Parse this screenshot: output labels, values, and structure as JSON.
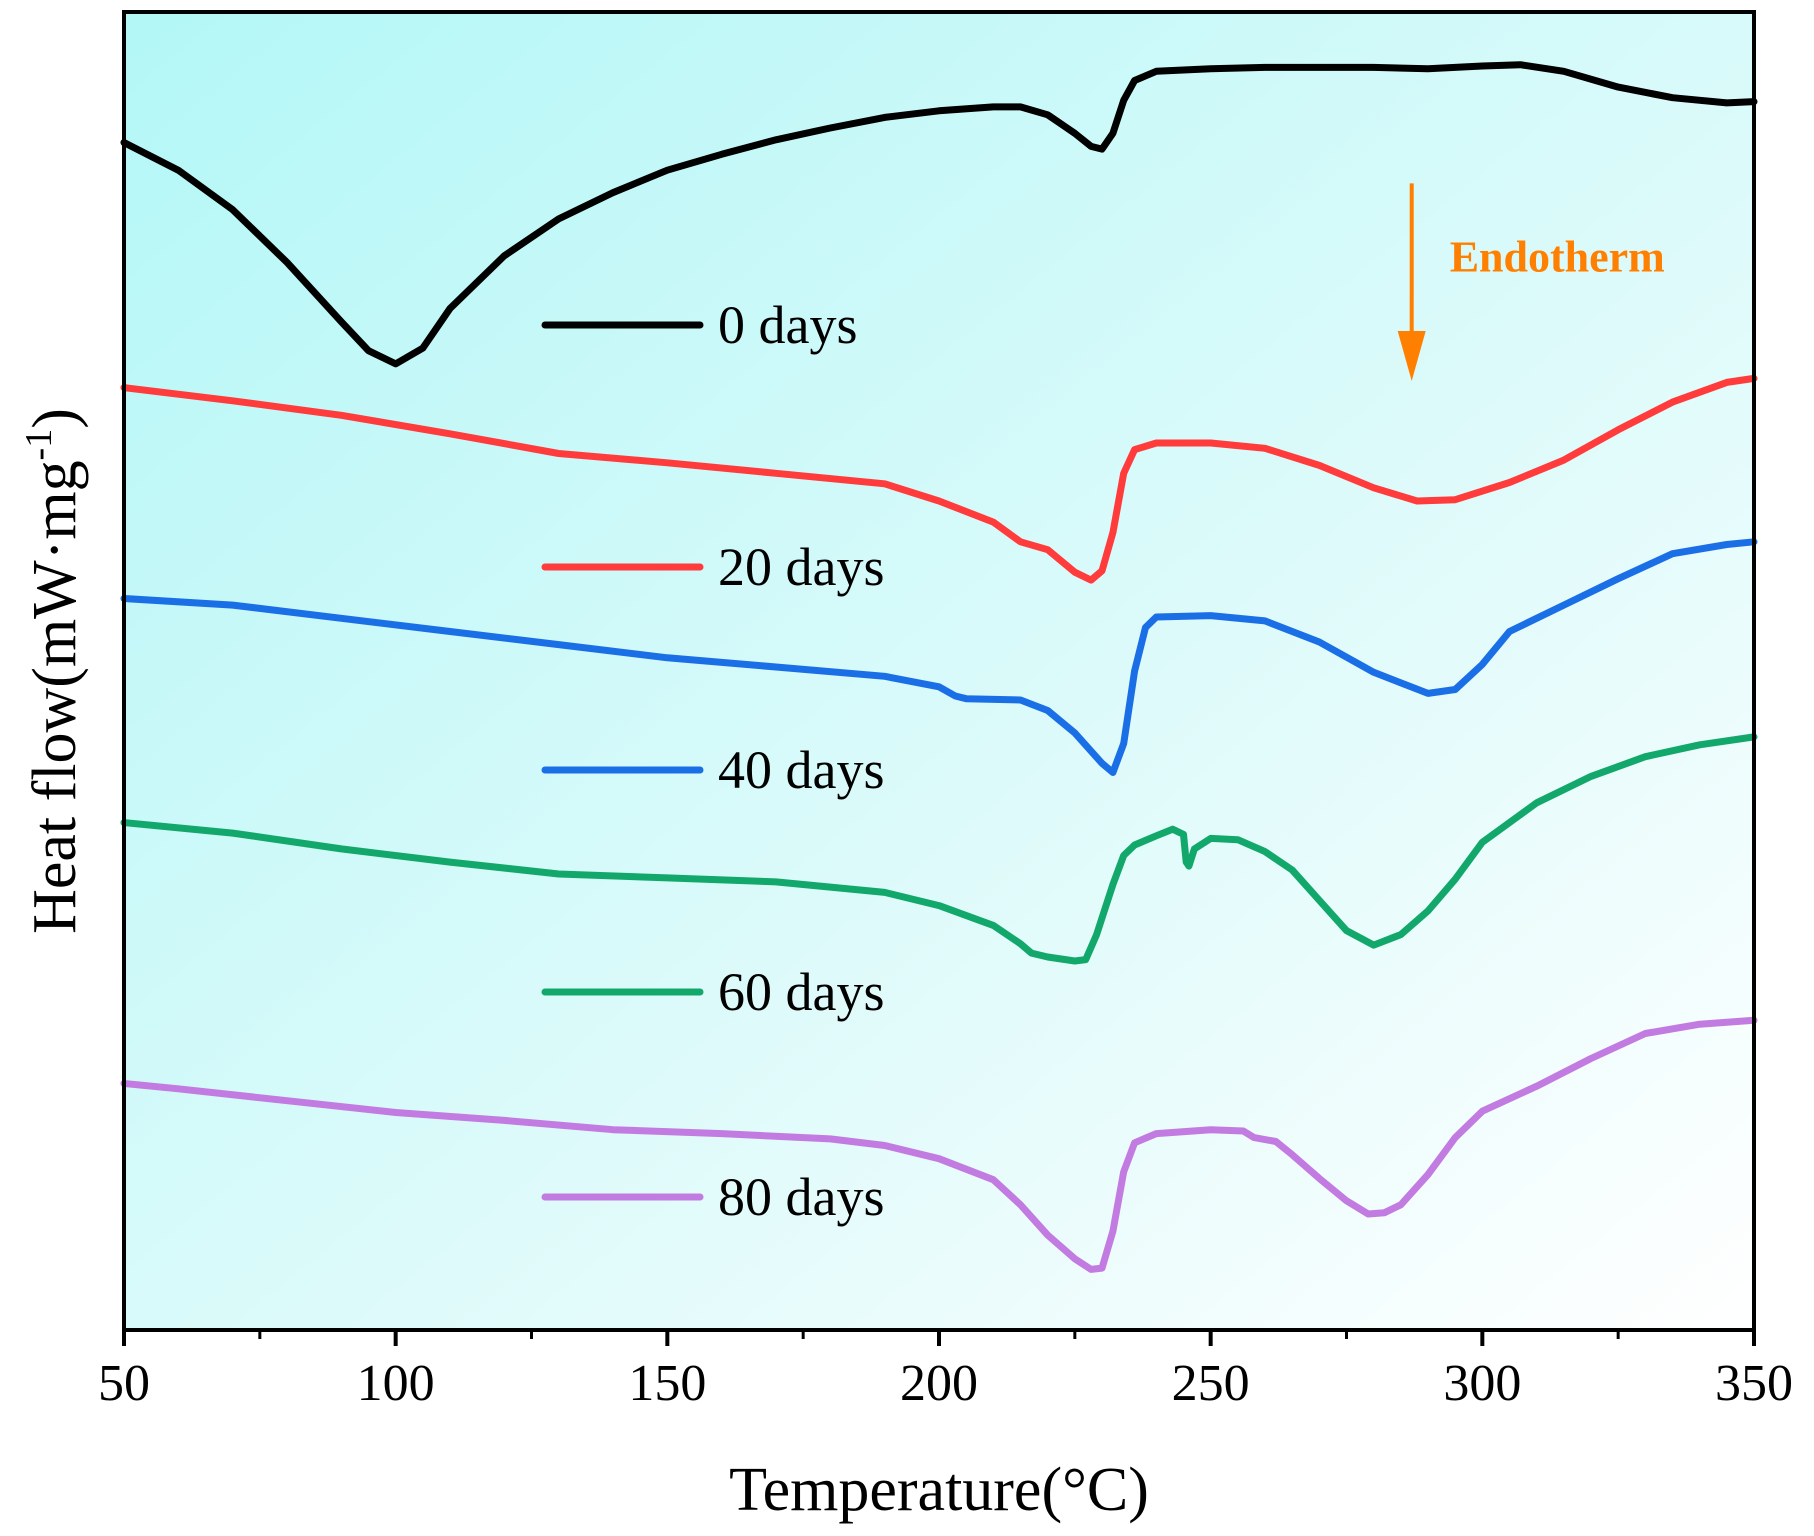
{
  "chart_data": {
    "type": "line",
    "title": "",
    "xlabel": "Temperature(°C)",
    "ylabel": "Heat flow(mW·mg",
    "ylabel_sup": "-1",
    "ylabel_close": ")",
    "xlim": [
      50,
      350
    ],
    "ylim": [
      0,
      100
    ],
    "x_ticks": [
      50,
      100,
      150,
      200,
      250,
      300,
      350
    ],
    "x_tick_labels": [
      "50",
      "100",
      "150",
      "200",
      "250",
      "300",
      "350"
    ],
    "grid": false,
    "legend_position": "center",
    "annotation": {
      "text": "Endotherm",
      "x": 287,
      "y_top": 87,
      "y_bottom": 72,
      "color": "#ff8000"
    },
    "series": [
      {
        "name": "0 days",
        "color": "#000000",
        "points": [
          [
            50,
            90.1
          ],
          [
            60,
            88.0
          ],
          [
            70,
            85.0
          ],
          [
            80,
            81.0
          ],
          [
            90,
            76.5
          ],
          [
            95,
            74.3
          ],
          [
            100,
            73.3
          ],
          [
            105,
            74.5
          ],
          [
            110,
            77.5
          ],
          [
            120,
            81.5
          ],
          [
            130,
            84.3
          ],
          [
            140,
            86.3
          ],
          [
            150,
            88.0
          ],
          [
            160,
            89.2
          ],
          [
            170,
            90.3
          ],
          [
            180,
            91.2
          ],
          [
            190,
            92.0
          ],
          [
            200,
            92.5
          ],
          [
            210,
            92.8
          ],
          [
            215,
            92.8
          ],
          [
            220,
            92.2
          ],
          [
            225,
            90.8
          ],
          [
            228,
            89.8
          ],
          [
            230,
            89.6
          ],
          [
            232,
            90.8
          ],
          [
            234,
            93.3
          ],
          [
            236,
            94.8
          ],
          [
            240,
            95.5
          ],
          [
            250,
            95.7
          ],
          [
            260,
            95.8
          ],
          [
            280,
            95.8
          ],
          [
            290,
            95.7
          ],
          [
            300,
            95.9
          ],
          [
            307,
            96.0
          ],
          [
            315,
            95.5
          ],
          [
            325,
            94.3
          ],
          [
            335,
            93.5
          ],
          [
            345,
            93.1
          ],
          [
            350,
            93.2
          ]
        ]
      },
      {
        "name": "20 days",
        "color": "#ff3b3b",
        "points": [
          [
            50,
            71.5
          ],
          [
            70,
            70.5
          ],
          [
            90,
            69.4
          ],
          [
            110,
            68.0
          ],
          [
            130,
            66.5
          ],
          [
            150,
            65.8
          ],
          [
            170,
            65.0
          ],
          [
            190,
            64.2
          ],
          [
            200,
            62.9
          ],
          [
            210,
            61.3
          ],
          [
            215,
            59.8
          ],
          [
            220,
            59.2
          ],
          [
            225,
            57.5
          ],
          [
            228,
            56.9
          ],
          [
            230,
            57.6
          ],
          [
            232,
            60.5
          ],
          [
            234,
            65.0
          ],
          [
            236,
            66.8
          ],
          [
            240,
            67.3
          ],
          [
            250,
            67.3
          ],
          [
            260,
            66.9
          ],
          [
            270,
            65.6
          ],
          [
            280,
            63.9
          ],
          [
            288,
            62.9
          ],
          [
            295,
            63.0
          ],
          [
            305,
            64.3
          ],
          [
            315,
            66.0
          ],
          [
            325,
            68.3
          ],
          [
            335,
            70.4
          ],
          [
            345,
            71.9
          ],
          [
            350,
            72.2
          ]
        ]
      },
      {
        "name": "40 days",
        "color": "#1a6fe6",
        "points": [
          [
            50,
            55.5
          ],
          [
            70,
            55.0
          ],
          [
            90,
            54.0
          ],
          [
            110,
            53.0
          ],
          [
            130,
            52.0
          ],
          [
            150,
            51.0
          ],
          [
            170,
            50.3
          ],
          [
            190,
            49.6
          ],
          [
            200,
            48.8
          ],
          [
            203,
            48.1
          ],
          [
            205,
            47.9
          ],
          [
            215,
            47.8
          ],
          [
            220,
            47.0
          ],
          [
            225,
            45.3
          ],
          [
            230,
            43.0
          ],
          [
            232,
            42.3
          ],
          [
            234,
            44.5
          ],
          [
            236,
            50.0
          ],
          [
            238,
            53.3
          ],
          [
            240,
            54.1
          ],
          [
            250,
            54.2
          ],
          [
            260,
            53.8
          ],
          [
            270,
            52.2
          ],
          [
            280,
            49.9
          ],
          [
            290,
            48.3
          ],
          [
            295,
            48.6
          ],
          [
            300,
            50.5
          ],
          [
            305,
            53.0
          ],
          [
            315,
            55.0
          ],
          [
            325,
            57.0
          ],
          [
            335,
            58.9
          ],
          [
            345,
            59.6
          ],
          [
            350,
            59.8
          ]
        ]
      },
      {
        "name": "60 days",
        "color": "#13a86b",
        "points": [
          [
            50,
            38.5
          ],
          [
            70,
            37.7
          ],
          [
            90,
            36.5
          ],
          [
            110,
            35.5
          ],
          [
            130,
            34.6
          ],
          [
            150,
            34.3
          ],
          [
            170,
            34.0
          ],
          [
            190,
            33.2
          ],
          [
            200,
            32.2
          ],
          [
            210,
            30.7
          ],
          [
            215,
            29.3
          ],
          [
            217,
            28.6
          ],
          [
            220,
            28.3
          ],
          [
            225,
            28.0
          ],
          [
            227,
            28.1
          ],
          [
            229,
            30.0
          ],
          [
            232,
            33.8
          ],
          [
            234,
            36.0
          ],
          [
            236,
            36.8
          ],
          [
            240,
            37.5
          ],
          [
            243,
            38.0
          ],
          [
            245,
            37.6
          ],
          [
            245.5,
            35.5
          ],
          [
            246,
            35.2
          ],
          [
            247,
            36.5
          ],
          [
            250,
            37.3
          ],
          [
            255,
            37.2
          ],
          [
            260,
            36.3
          ],
          [
            265,
            34.9
          ],
          [
            270,
            32.6
          ],
          [
            275,
            30.3
          ],
          [
            280,
            29.2
          ],
          [
            285,
            30.0
          ],
          [
            290,
            31.8
          ],
          [
            295,
            34.2
          ],
          [
            300,
            37.0
          ],
          [
            310,
            40.0
          ],
          [
            320,
            42.0
          ],
          [
            330,
            43.5
          ],
          [
            340,
            44.4
          ],
          [
            350,
            45.0
          ]
        ]
      },
      {
        "name": "80 days",
        "color": "#c27be0",
        "points": [
          [
            50,
            18.7
          ],
          [
            60,
            18.3
          ],
          [
            80,
            17.4
          ],
          [
            100,
            16.5
          ],
          [
            120,
            15.9
          ],
          [
            140,
            15.2
          ],
          [
            160,
            14.9
          ],
          [
            180,
            14.5
          ],
          [
            190,
            14.0
          ],
          [
            200,
            13.0
          ],
          [
            210,
            11.4
          ],
          [
            215,
            9.5
          ],
          [
            220,
            7.2
          ],
          [
            225,
            5.4
          ],
          [
            228,
            4.6
          ],
          [
            230,
            4.7
          ],
          [
            232,
            7.5
          ],
          [
            234,
            12.0
          ],
          [
            236,
            14.2
          ],
          [
            240,
            14.9
          ],
          [
            250,
            15.2
          ],
          [
            256,
            15.1
          ],
          [
            258,
            14.6
          ],
          [
            262,
            14.3
          ],
          [
            265,
            13.3
          ],
          [
            270,
            11.5
          ],
          [
            275,
            9.8
          ],
          [
            279,
            8.8
          ],
          [
            282,
            8.9
          ],
          [
            285,
            9.5
          ],
          [
            290,
            11.8
          ],
          [
            295,
            14.6
          ],
          [
            300,
            16.6
          ],
          [
            310,
            18.5
          ],
          [
            320,
            20.6
          ],
          [
            330,
            22.5
          ],
          [
            340,
            23.2
          ],
          [
            350,
            23.5
          ]
        ]
      }
    ]
  }
}
